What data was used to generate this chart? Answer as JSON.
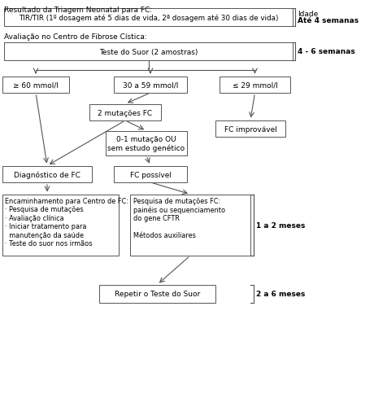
{
  "bg_color": "#ffffff",
  "text_color": "#000000",
  "box_edge_color": "#555555",
  "arrow_color": "#555555",
  "bracket_color": "#555555",
  "title1": "Resultado da Triagem Neonatal para FC:",
  "box1_text": "TIR/TIR (1º dosagem até 5 dias de vida, 2ª dosagem até 30 dias de vida)",
  "label1": "Idade",
  "label1b": "Até 4 semanas",
  "title2": "Avaliação no Centro de Fibrose Cística:",
  "box2_text": "Teste do Suor (2 amostras)",
  "label2": "4 - 6 semanas",
  "box3a_text": "≥ 60 mmol/l",
  "box3b_text": "30 a 59 mmol/l",
  "box3c_text": "≤ 29 mmol/l",
  "box4a_text": "2 mutações FC",
  "box4b_text": "0-1 mutação OU\nsem estudo genético",
  "box4c_text": "FC improvável",
  "box5a_text": "Diagnóstico de FC",
  "box5b_text": "FC possível",
  "box6b_text": "Pesquisa de mutações FC:\npainéis ou sequenciamento\ndo gene CFTR\n\nMétodos auxiliares",
  "label3": "1 a 2 meses",
  "box7_text": "Repetir o Teste do Suor",
  "label4": "2 a 6 meses"
}
